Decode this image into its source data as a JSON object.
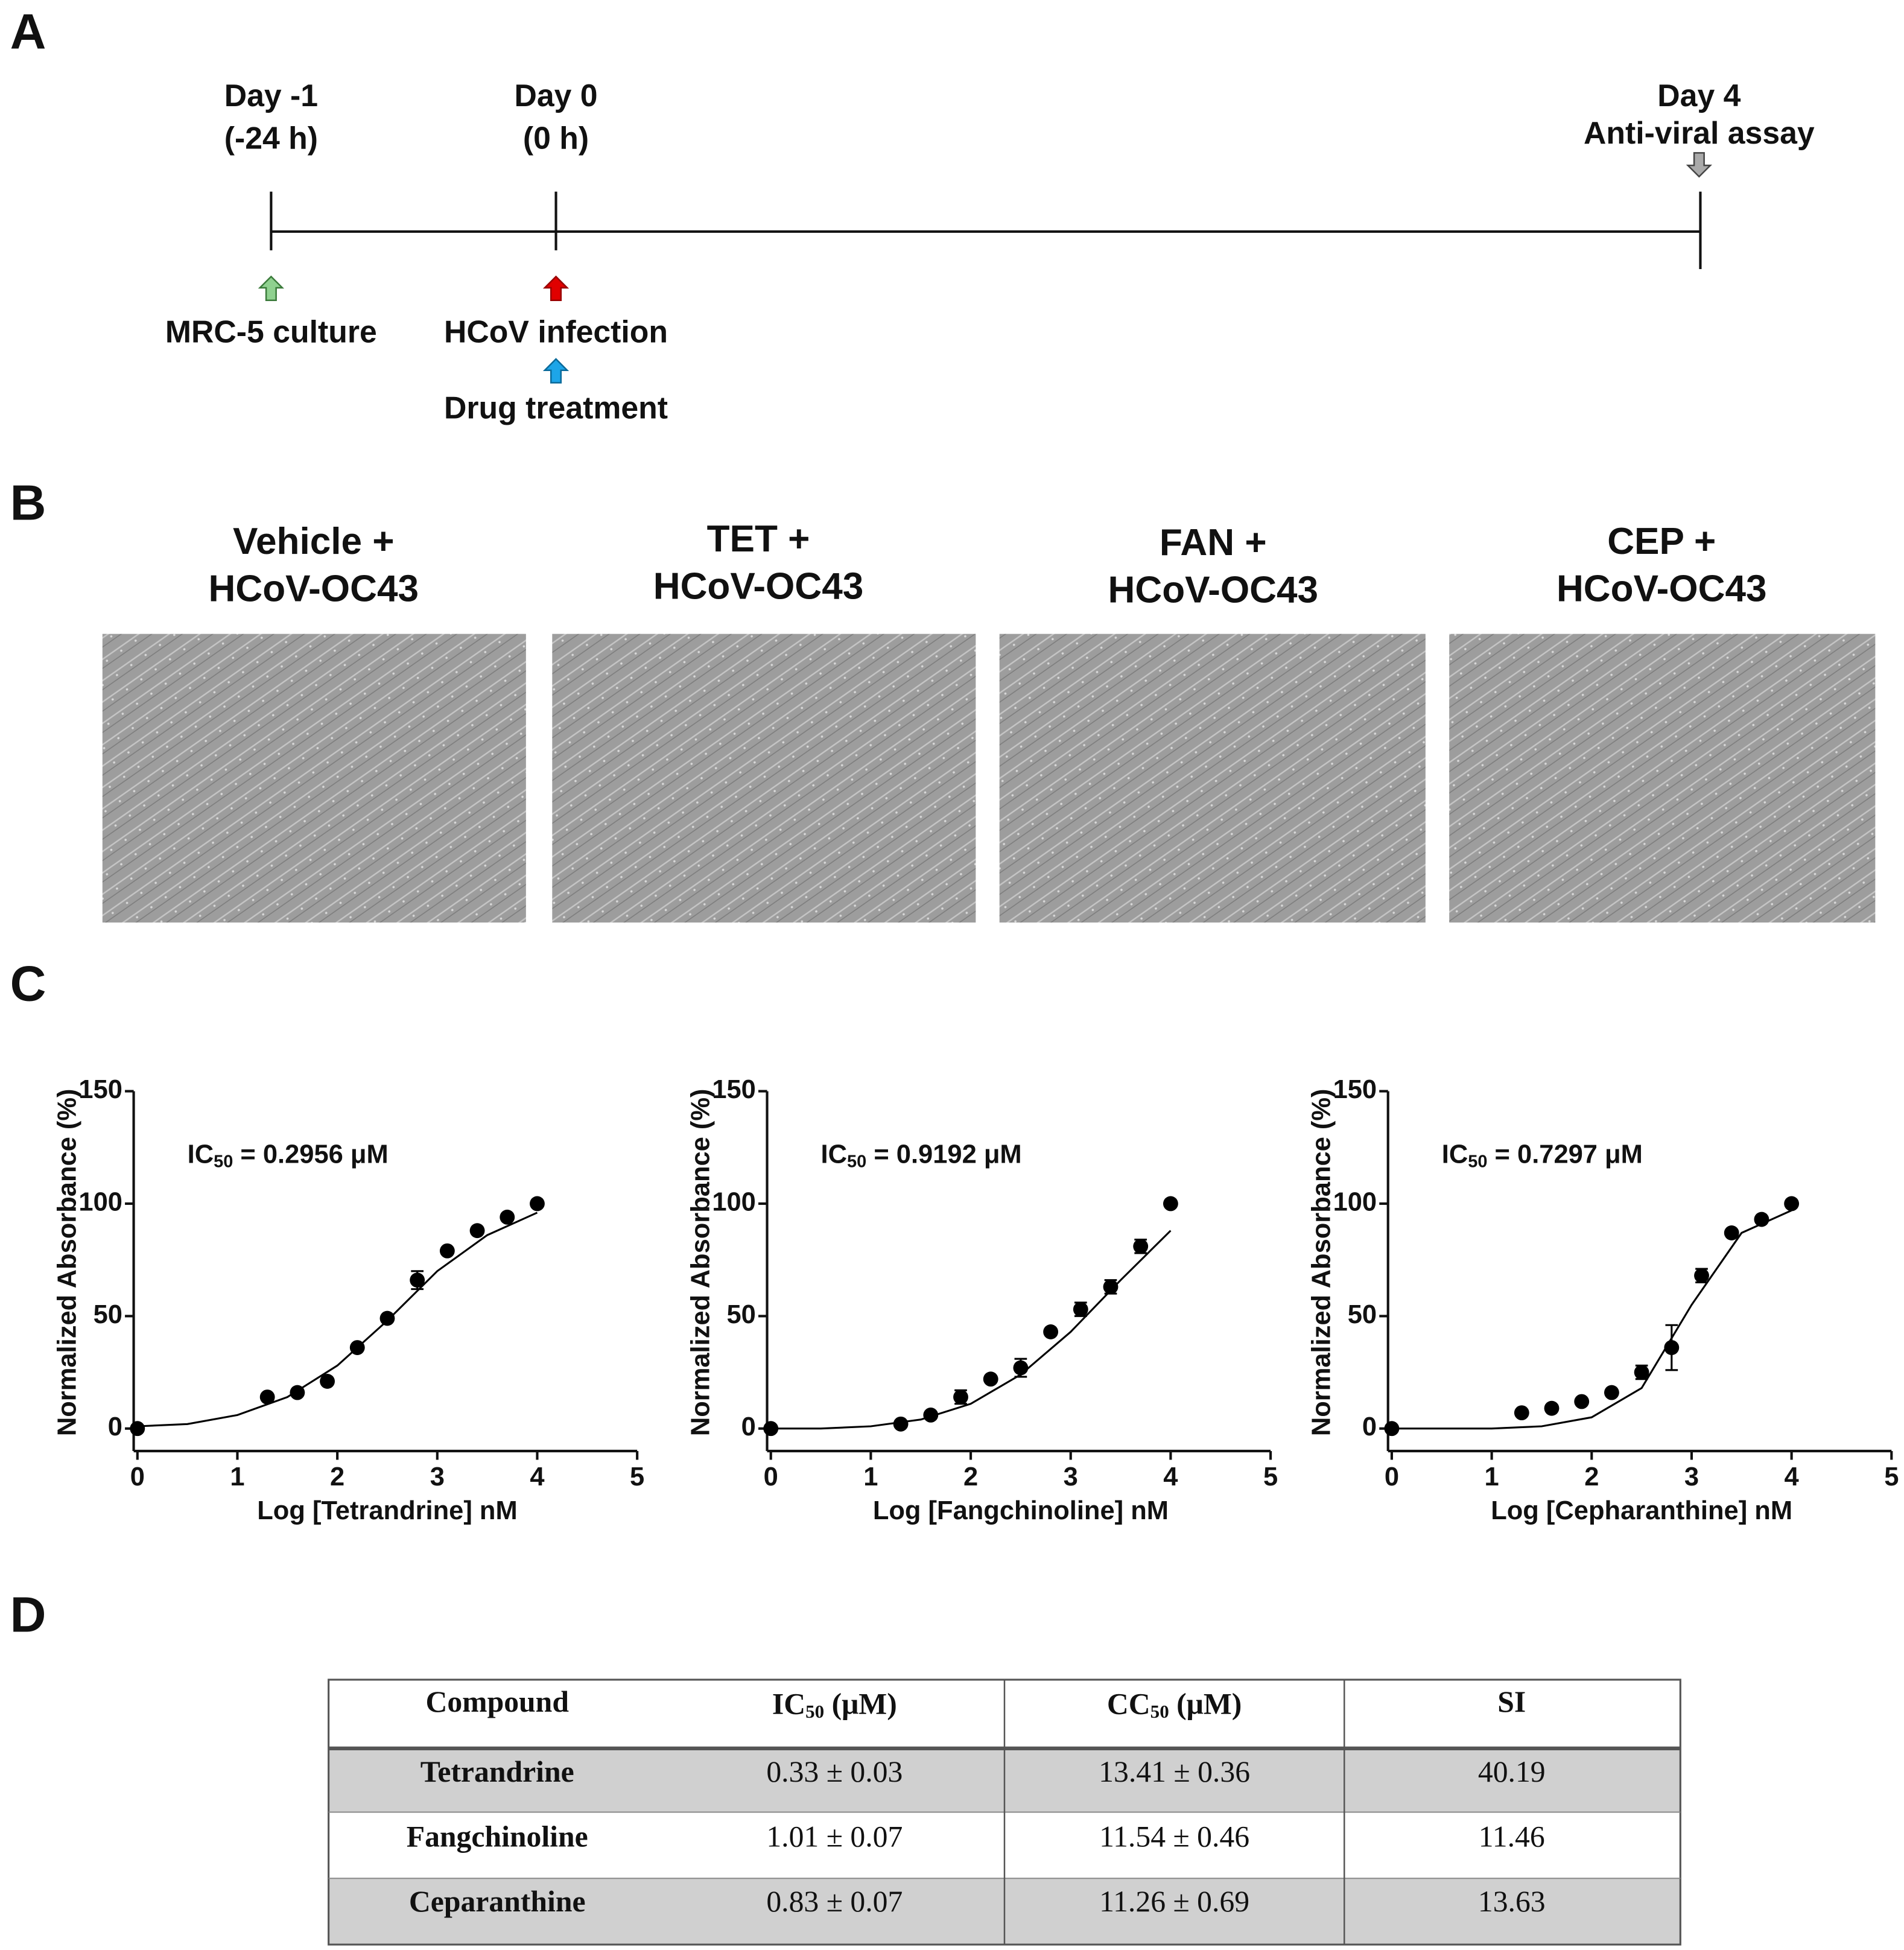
{
  "panel_labels": [
    "A",
    "B",
    "C",
    "D"
  ],
  "timeline": {
    "events": [
      {
        "day": "Day -1",
        "time": "(-24 h)"
      },
      {
        "day": "Day 0",
        "time": "(0 h)"
      },
      {
        "day": "Day 4",
        "time": "Anti-viral assay"
      }
    ],
    "steps": [
      "MRC-5 culture",
      "HCoV infection",
      "Drug treatment"
    ]
  },
  "micrographs": [
    {
      "title": [
        "Vehicle +",
        "HCoV-OC43"
      ]
    },
    {
      "title": [
        "TET +",
        "HCoV-OC43"
      ]
    },
    {
      "title": [
        "FAN +",
        "HCoV-OC43"
      ]
    },
    {
      "title": [
        "CEP +",
        "HCoV-OC43"
      ]
    }
  ],
  "chart_data": [
    {
      "type": "scatter",
      "y_label": "Normalized Absorbance (%)",
      "x_label": "Log [Tetrandrine] nM",
      "annotation": [
        "IC",
        "50",
        " = 0.2956 μM"
      ],
      "x": [
        0,
        1.3,
        1.6,
        1.9,
        2.2,
        2.5,
        2.8,
        3.1,
        3.4,
        3.7,
        4.0
      ],
      "values": [
        0,
        14,
        16,
        21,
        36,
        49,
        66,
        79,
        88,
        94,
        100
      ],
      "errors": [
        null,
        null,
        null,
        null,
        null,
        null,
        4,
        null,
        null,
        null,
        null
      ],
      "fit": {
        "x": [
          0,
          0.5,
          1,
          1.5,
          2,
          2.5,
          3,
          3.5,
          4
        ],
        "y": [
          1,
          2,
          6,
          14,
          28,
          48,
          70,
          86,
          96
        ]
      },
      "color": "#000000",
      "xlim": [
        0,
        5
      ],
      "xticks": [
        0,
        1,
        2,
        3,
        4,
        5
      ],
      "ylim": [
        -10,
        150
      ],
      "yticks": [
        0,
        50,
        100,
        150
      ]
    },
    {
      "type": "scatter",
      "y_label": "Normalized Absorbance (%)",
      "x_label": "Log [Fangchinoline] nM",
      "annotation": [
        "IC",
        "50",
        " = 0.9192 μM"
      ],
      "x": [
        0,
        1.3,
        1.6,
        1.9,
        2.2,
        2.5,
        2.8,
        3.1,
        3.4,
        3.7,
        4.0
      ],
      "values": [
        0,
        2,
        6,
        14,
        22,
        27,
        43,
        53,
        63,
        81,
        100
      ],
      "errors": [
        null,
        null,
        null,
        3,
        null,
        4,
        null,
        3,
        3,
        3,
        null
      ],
      "fit": {
        "x": [
          0,
          0.5,
          1,
          1.5,
          2,
          2.5,
          3,
          3.5,
          4
        ],
        "y": [
          0,
          0,
          1,
          4,
          11,
          24,
          43,
          66,
          88
        ]
      },
      "color": "#000000",
      "xlim": [
        0,
        5
      ],
      "xticks": [
        0,
        1,
        2,
        3,
        4,
        5
      ],
      "ylim": [
        -10,
        150
      ],
      "yticks": [
        0,
        50,
        100,
        150
      ]
    },
    {
      "type": "scatter",
      "y_label": "Normalized Absorbance (%)",
      "x_label": "Log [Cepharanthine] nM",
      "annotation": [
        "IC",
        "50",
        " = 0.7297 μM"
      ],
      "x": [
        0,
        1.3,
        1.6,
        1.9,
        2.2,
        2.5,
        2.8,
        3.1,
        3.4,
        3.7,
        4.0
      ],
      "values": [
        0,
        7,
        9,
        12,
        16,
        25,
        36,
        68,
        87,
        93,
        100
      ],
      "errors": [
        null,
        null,
        null,
        null,
        null,
        3,
        10,
        3,
        null,
        null,
        null
      ],
      "fit": {
        "x": [
          0,
          0.5,
          1,
          1.5,
          2,
          2.5,
          3,
          3.5,
          4
        ],
        "y": [
          0,
          0,
          0,
          1,
          5,
          18,
          55,
          87,
          97
        ]
      },
      "color": "#000000",
      "xlim": [
        0,
        5
      ],
      "xticks": [
        0,
        1,
        2,
        3,
        4,
        5
      ],
      "ylim": [
        -10,
        150
      ],
      "yticks": [
        0,
        50,
        100,
        150
      ]
    }
  ],
  "table": {
    "header": [
      "Compound",
      [
        "IC",
        "50",
        " (μM)"
      ],
      [
        "CC",
        "50",
        " (μM)"
      ],
      "SI"
    ],
    "rows": [
      [
        "Tetrandrine",
        "0.33 ± 0.03",
        "13.41 ± 0.36",
        "40.19"
      ],
      [
        "Fangchinoline",
        "1.01 ± 0.07",
        "11.54 ± 0.46",
        "11.46"
      ],
      [
        "Ceparanthine",
        "0.83 ± 0.07",
        "11.26 ± 0.69",
        "13.63"
      ]
    ]
  }
}
